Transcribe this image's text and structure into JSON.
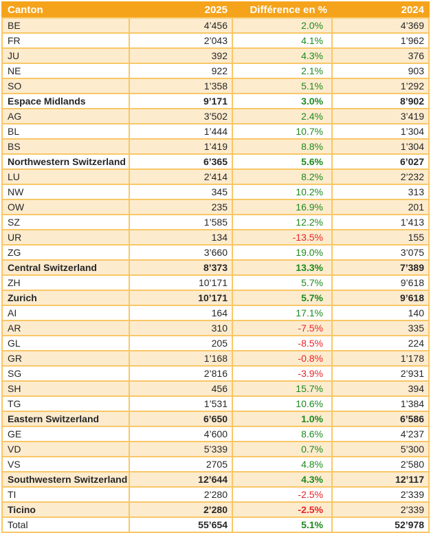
{
  "colors": {
    "header_bg": "#F5A31B",
    "row_alt_bg": "#FDEBCE",
    "inner_border": "#F8C766",
    "outer_border": "#F0A42C",
    "positive": "#1D8A1D",
    "negative": "#E82429"
  },
  "chart_data": {
    "type": "table",
    "title": "",
    "columns": [
      "Canton",
      "2025",
      "Différence en %",
      "2024"
    ],
    "rows": [
      {
        "canton": "BE",
        "y2025": "4’456",
        "diff": "2.0%",
        "y2024": "4’369",
        "bold": false
      },
      {
        "canton": "FR",
        "y2025": "2’043",
        "diff": "4.1%",
        "y2024": "1’962",
        "bold": false
      },
      {
        "canton": "JU",
        "y2025": "392",
        "diff": "4.3%",
        "y2024": "376",
        "bold": false
      },
      {
        "canton": "NE",
        "y2025": "922",
        "diff": "2.1%",
        "y2024": "903",
        "bold": false
      },
      {
        "canton": "SO",
        "y2025": "1’358",
        "diff": "5.1%",
        "y2024": "1’292",
        "bold": false
      },
      {
        "canton": "Espace Midlands",
        "y2025": "9’171",
        "diff": "3.0%",
        "y2024": "8’902",
        "bold": true
      },
      {
        "canton": "AG",
        "y2025": "3’502",
        "diff": "2.4%",
        "y2024": "3’419",
        "bold": false
      },
      {
        "canton": "BL",
        "y2025": "1’444",
        "diff": "10.7%",
        "y2024": "1’304",
        "bold": false
      },
      {
        "canton": "BS",
        "y2025": "1’419",
        "diff": "8.8%",
        "y2024": "1’304",
        "bold": false
      },
      {
        "canton": "Northwestern Switzerland",
        "y2025": "6’365",
        "diff": "5.6%",
        "y2024": "6’027",
        "bold": true
      },
      {
        "canton": "LU",
        "y2025": "2’414",
        "diff": "8.2%",
        "y2024": "2’232",
        "bold": false
      },
      {
        "canton": "NW",
        "y2025": "345",
        "diff": "10.2%",
        "y2024": "313",
        "bold": false
      },
      {
        "canton": "OW",
        "y2025": "235",
        "diff": "16.9%",
        "y2024": "201",
        "bold": false
      },
      {
        "canton": "SZ",
        "y2025": "1’585",
        "diff": "12.2%",
        "y2024": "1’413",
        "bold": false
      },
      {
        "canton": "UR",
        "y2025": "134",
        "diff": "-13.5%",
        "y2024": "155",
        "bold": false
      },
      {
        "canton": "ZG",
        "y2025": "3’660",
        "diff": "19.0%",
        "y2024": "3’075",
        "bold": false
      },
      {
        "canton": "Central Switzerland",
        "y2025": "8’373",
        "diff": "13.3%",
        "y2024": "7’389",
        "bold": true
      },
      {
        "canton": "ZH",
        "y2025": "10’171",
        "diff": "5.7%",
        "y2024": "9’618",
        "bold": false
      },
      {
        "canton": "Zurich",
        "y2025": "10’171",
        "diff": "5.7%",
        "y2024": "9’618",
        "bold": true
      },
      {
        "canton": "AI",
        "y2025": "164",
        "diff": "17.1%",
        "y2024": "140",
        "bold": false
      },
      {
        "canton": "AR",
        "y2025": "310",
        "diff": "-7.5%",
        "y2024": "335",
        "bold": false
      },
      {
        "canton": "GL",
        "y2025": "205",
        "diff": "-8.5%",
        "y2024": "224",
        "bold": false
      },
      {
        "canton": "GR",
        "y2025": "1’168",
        "diff": "-0.8%",
        "y2024": "1’178",
        "bold": false
      },
      {
        "canton": "SG",
        "y2025": "2’816",
        "diff": "-3.9%",
        "y2024": "2’931",
        "bold": false
      },
      {
        "canton": "SH",
        "y2025": "456",
        "diff": "15.7%",
        "y2024": "394",
        "bold": false
      },
      {
        "canton": "TG",
        "y2025": "1’531",
        "diff": "10.6%",
        "y2024": "1’384",
        "bold": false
      },
      {
        "canton": "Eastern Switzerland",
        "y2025": "6’650",
        "diff": "1.0%",
        "y2024": "6’586",
        "bold": true
      },
      {
        "canton": "GE",
        "y2025": "4’600",
        "diff": "8.6%",
        "y2024": "4’237",
        "bold": false
      },
      {
        "canton": "VD",
        "y2025": "5’339",
        "diff": "0.7%",
        "y2024": "5’300",
        "bold": false
      },
      {
        "canton": "VS",
        "y2025": "2705",
        "diff": "4.8%",
        "y2024": "2’580",
        "bold": false
      },
      {
        "canton": "Southwestern Switzerland",
        "y2025": "12’644",
        "diff": "4.3%",
        "y2024": "12’117",
        "bold": true
      },
      {
        "canton": "TI",
        "y2025": "2’280",
        "diff": "-2.5%",
        "y2024": "2’339",
        "bold": false
      },
      {
        "canton": "Ticino",
        "y2025": "2’280",
        "diff": "-2.5%",
        "y2024": "2’339",
        "bold": true,
        "y2024_bold": false
      },
      {
        "canton": "Total",
        "y2025": "55’654",
        "diff": "5.1%",
        "y2024": "52’978",
        "bold": true,
        "label_bold": false
      }
    ]
  }
}
